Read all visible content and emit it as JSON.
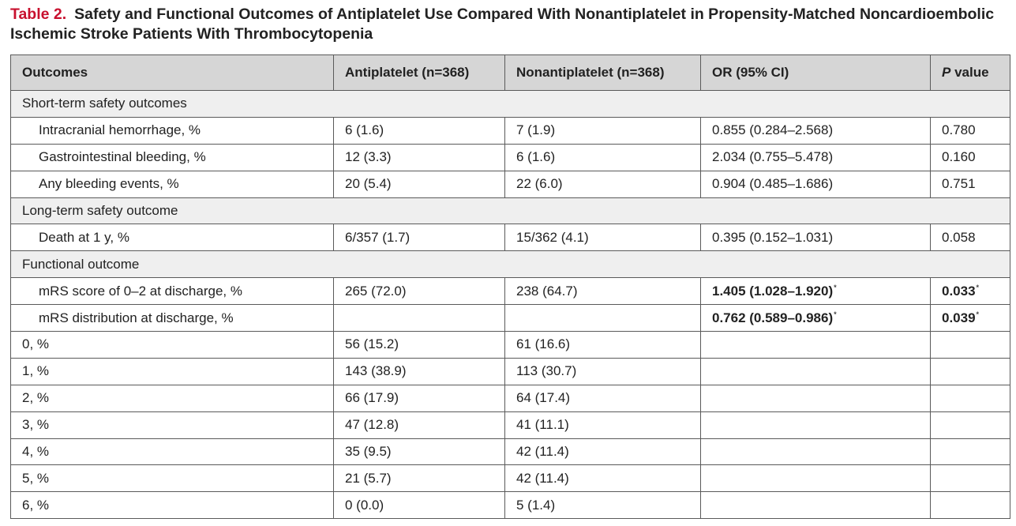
{
  "caption": {
    "label": "Table 2.",
    "text": "Safety and Functional Outcomes of Antiplatelet Use Compared With Nonantiplatelet in Propensity-Matched Noncardioembolic Ischemic Stroke Patients With Thrombocytopenia"
  },
  "header": {
    "outcomes": "Outcomes",
    "antiplatelet": "Antiplatelet (n=368)",
    "nonantiplatelet": "Nonantiplatelet (n=368)",
    "or": "OR (95% CI)",
    "p_italic": "P",
    "p_rest": " value"
  },
  "sections": {
    "short_term": "Short-term safety outcomes",
    "long_term": "Long-term safety outcome",
    "functional": "Functional outcome"
  },
  "rows": {
    "ich": {
      "label": "Intracranial hemorrhage, %",
      "anti": "6 (1.6)",
      "non": "7 (1.9)",
      "or": "0.855 (0.284–2.568)",
      "p": "0.780"
    },
    "gi": {
      "label": "Gastrointestinal bleeding, %",
      "anti": "12 (3.3)",
      "non": "6 (1.6)",
      "or": "2.034 (0.755–5.478)",
      "p": "0.160"
    },
    "any": {
      "label": "Any bleeding events, %",
      "anti": "20 (5.4)",
      "non": "22 (6.0)",
      "or": "0.904 (0.485–1.686)",
      "p": "0.751"
    },
    "death": {
      "label": "Death at 1 y, %",
      "anti": "6/357 (1.7)",
      "non": "15/362 (4.1)",
      "or": "0.395 (0.152–1.031)",
      "p": "0.058"
    },
    "mrs02": {
      "label": "mRS score of 0–2 at discharge, %",
      "anti": "265 (72.0)",
      "non": "238 (64.7)",
      "or": "1.405 (1.028–1.920)",
      "p": "0.033"
    },
    "mrsdist": {
      "label": "mRS distribution at discharge, %",
      "anti": "",
      "non": "",
      "or": "0.762 (0.589–0.986)",
      "p": "0.039"
    },
    "m0": {
      "label": "0, %",
      "anti": "56 (15.2)",
      "non": "61 (16.6)"
    },
    "m1": {
      "label": "1, %",
      "anti": "143 (38.9)",
      "non": "113 (30.7)"
    },
    "m2": {
      "label": "2, %",
      "anti": "66 (17.9)",
      "non": "64 (17.4)"
    },
    "m3": {
      "label": "3, %",
      "anti": "47 (12.8)",
      "non": "41 (11.1)"
    },
    "m4": {
      "label": "4, %",
      "anti": "35 (9.5)",
      "non": "42 (11.4)"
    },
    "m5": {
      "label": "5, %",
      "anti": "21 (5.7)",
      "non": "42 (11.4)"
    },
    "m6": {
      "label": "6, %",
      "anti": "0 (0.0)",
      "non": "5 (1.4)"
    }
  },
  "footnote_mark": "*"
}
